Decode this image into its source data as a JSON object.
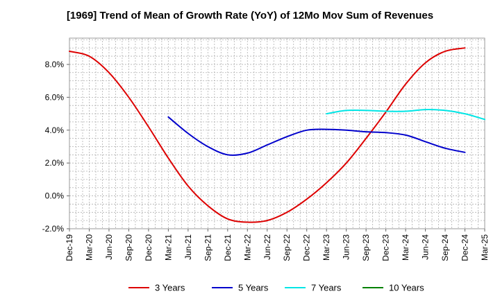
{
  "chart_data": {
    "type": "line",
    "title": "[1969]  Trend of Mean of Growth Rate (YoY) of 12Mo Mov Sum of Revenues",
    "xlabel": "",
    "ylabel": "",
    "ylim": [
      -2.0,
      9.6
    ],
    "yticks": [
      -2.0,
      0.0,
      2.0,
      4.0,
      6.0,
      8.0
    ],
    "ytick_labels": [
      "-2.0%",
      "0.0%",
      "2.0%",
      "4.0%",
      "6.0%",
      "8.0%"
    ],
    "x_start": "Dec-19",
    "x_end": "Mar-25",
    "xtick_labels": [
      "Dec-19",
      "Mar-20",
      "Jun-20",
      "Sep-20",
      "Dec-20",
      "Mar-21",
      "Jun-21",
      "Sep-21",
      "Dec-21",
      "Mar-22",
      "Jun-22",
      "Sep-22",
      "Dec-22",
      "Mar-23",
      "Jun-23",
      "Sep-23",
      "Dec-23",
      "Mar-24",
      "Jun-24",
      "Sep-24",
      "Dec-24",
      "Mar-25"
    ],
    "grid": true,
    "legend_position": "bottom",
    "series": [
      {
        "name": "3 Years",
        "color": "#dd0000",
        "start_quarter": 0,
        "values": [
          8.8,
          8.5,
          7.5,
          6.0,
          4.2,
          2.3,
          0.6,
          -0.6,
          -1.4,
          -1.6,
          -1.5,
          -1.0,
          -0.2,
          0.8,
          2.0,
          3.5,
          5.1,
          6.8,
          8.1,
          8.8,
          9.0
        ]
      },
      {
        "name": "5 Years",
        "color": "#0000cc",
        "start_quarter": 5,
        "values": [
          4.8,
          3.8,
          3.0,
          2.5,
          2.6,
          3.1,
          3.6,
          4.0,
          4.05,
          4.0,
          3.9,
          3.85,
          3.7,
          3.3,
          2.9,
          2.65
        ]
      },
      {
        "name": "7 Years",
        "color": "#00e5e5",
        "start_quarter": 13,
        "values": [
          5.0,
          5.2,
          5.2,
          5.15,
          5.15,
          5.25,
          5.2,
          5.0,
          4.65
        ]
      },
      {
        "name": "10 Years",
        "color": "#008000",
        "start_quarter": 0,
        "values": []
      }
    ]
  }
}
